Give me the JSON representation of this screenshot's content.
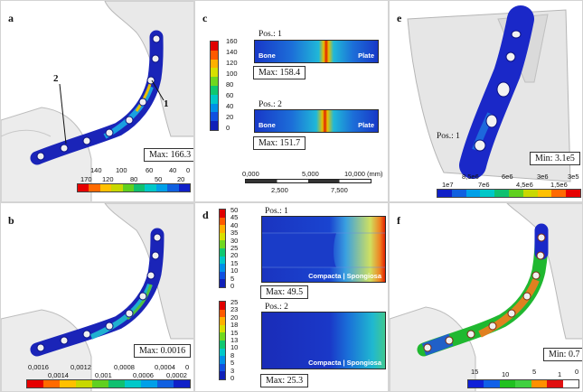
{
  "panels": {
    "a": {
      "label": "a",
      "max_text": "Max: 166.3",
      "markers": [
        "1",
        "2"
      ],
      "scale_ticks": [
        "170",
        "140",
        "120",
        "100",
        "80",
        "60",
        "50",
        "40",
        "20",
        "0"
      ],
      "scale_colors": [
        "#e60000",
        "#ff6a00",
        "#ffc000",
        "#c8d800",
        "#60d020",
        "#10c070",
        "#00c8c8",
        "#00a0e8",
        "#1060e0",
        "#1020c8"
      ]
    },
    "b": {
      "label": "b",
      "max_text": "Max: 0.0016",
      "scale_ticks": [
        "0,0016",
        "0,0014",
        "0,0012",
        "0,001",
        "0,0008",
        "0,0006",
        "0,0004",
        "0,0002",
        "0"
      ],
      "scale_colors": [
        "#e60000",
        "#ff6a00",
        "#ffc000",
        "#c8d800",
        "#60d020",
        "#10c070",
        "#00c8c8",
        "#00a0e8",
        "#1060e0",
        "#1020c8"
      ]
    },
    "c": {
      "label": "c",
      "scale_ticks": [
        "160",
        "140",
        "120",
        "100",
        "80",
        "60",
        "40",
        "20",
        "0"
      ],
      "scale_colors": [
        "#e00000",
        "#ff5a00",
        "#ffb000",
        "#d8e000",
        "#70d820",
        "#10c870",
        "#00c8c8",
        "#0090e8",
        "#1050e0",
        "#1020b8"
      ],
      "pos1": {
        "title": "Pos.: 1",
        "left": "Bone",
        "right": "Plate",
        "max_text": "Max: 158.4"
      },
      "pos2": {
        "title": "Pos.: 2",
        "left": "Bone",
        "right": "Plate",
        "max_text": "Max: 151.7"
      },
      "ruler": {
        "labels_top": [
          "0,000",
          "5,000",
          "10,000 (mm)"
        ],
        "labels_bottom": [
          "2,500",
          "7,500"
        ]
      }
    },
    "d": {
      "label": "d",
      "scale1_ticks": [
        "50",
        "45",
        "40",
        "35",
        "30",
        "25",
        "20",
        "15",
        "10",
        "5",
        "0"
      ],
      "scale2_ticks": [
        "25",
        "23",
        "20",
        "18",
        "15",
        "13",
        "10",
        "8",
        "5",
        "3",
        "0"
      ],
      "scale_colors": [
        "#e00000",
        "#ff5a00",
        "#ffb000",
        "#d8e000",
        "#70d820",
        "#10c870",
        "#00c8c8",
        "#0090e8",
        "#1050e0",
        "#1020b8"
      ],
      "pos1": {
        "title": "Pos.: 1",
        "caption": "Compacta | Spongiosa",
        "max_text": "Max: 49.5"
      },
      "pos2": {
        "title": "Pos.: 2",
        "caption": "Compacta | Spongiosa",
        "max_text": "Max: 25.3"
      }
    },
    "e": {
      "label": "e",
      "pos_text": "Pos.: 1",
      "min_text": "Min: 3.1e5",
      "scale_top": [
        "8,5e6",
        "6e6",
        "3e6",
        "3e5"
      ],
      "scale_bottom": [
        "1e7",
        "7e6",
        "4,5e6",
        "1,5e6"
      ],
      "scale_colors": [
        "#1020c8",
        "#1060e0",
        "#00a0e8",
        "#00c8c8",
        "#10c070",
        "#60d020",
        "#c8d800",
        "#ffc000",
        "#ff6a00",
        "#e60000"
      ]
    },
    "f": {
      "label": "f",
      "min_text": "Min: 0.7",
      "scale_ticks": [
        "15",
        "10",
        "5",
        "1",
        "0"
      ],
      "scale_colors": [
        "#1020d8",
        "#1060e8",
        "#20c020",
        "#40d040",
        "#ff9000",
        "#e01010",
        "#ffffff"
      ]
    }
  }
}
